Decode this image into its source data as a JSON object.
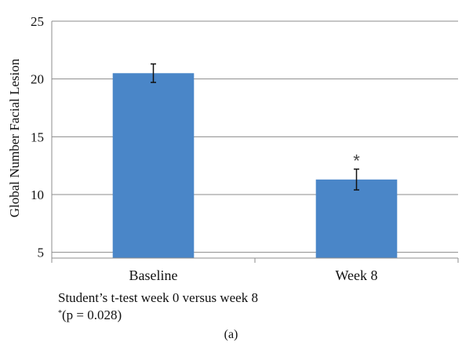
{
  "chart_data": {
    "type": "bar",
    "categories": [
      "Baseline",
      "Week 8"
    ],
    "values": [
      20.5,
      11.3
    ],
    "errors": [
      0.8,
      0.9
    ],
    "ylabel": "Global Number Facial Lesion",
    "xlabel": "",
    "ylim": [
      4.5,
      25
    ],
    "y_ticks": [
      5,
      10,
      15,
      20,
      25
    ],
    "grid": true,
    "bar_color": "#4a86c8",
    "annotations": [
      {
        "category": "Week 8",
        "text": "*"
      }
    ]
  },
  "footnote": {
    "line1": "Student’s t-test week 0 versus week 8",
    "line2_sup": "*",
    "line2": "(p = 0.028)"
  },
  "caption": "(a)"
}
